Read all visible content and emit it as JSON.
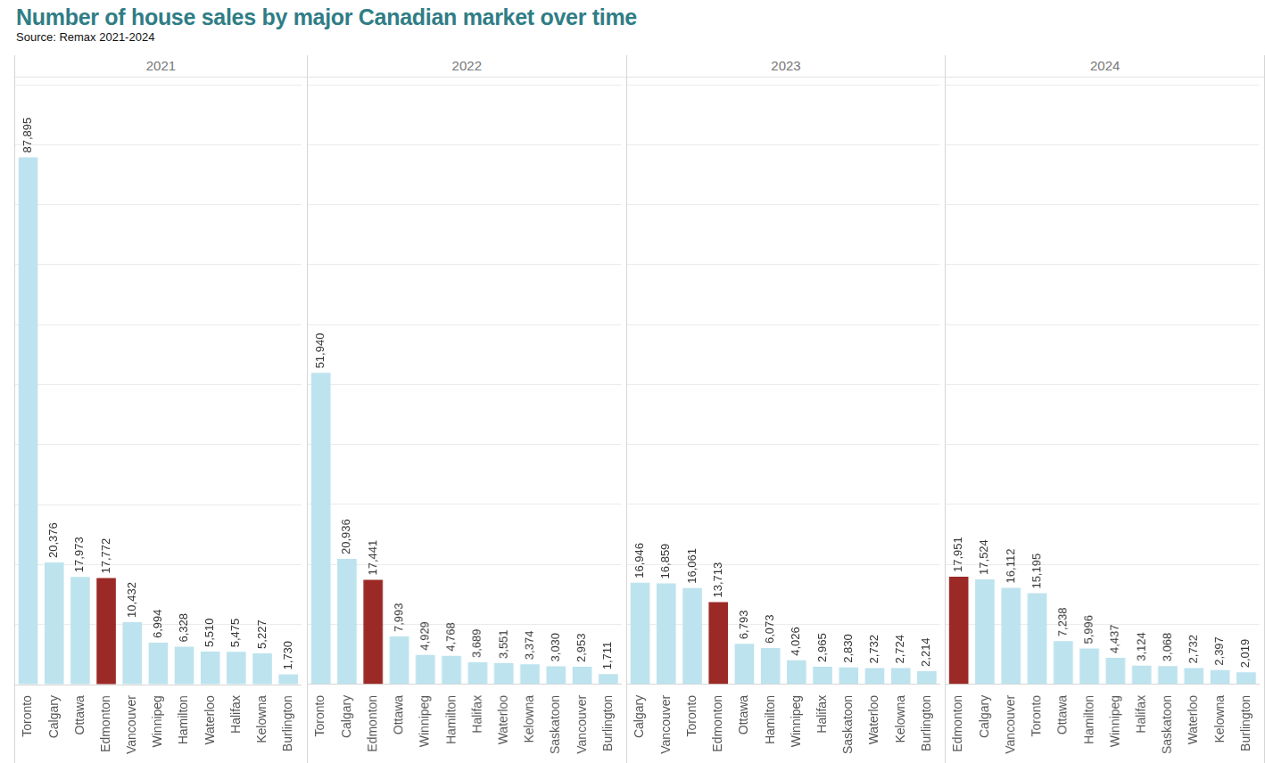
{
  "title": "Number of house sales by major Canadian market over time",
  "subtitle": "Source: Remax 2021-2024",
  "chart_data": [
    {
      "type": "bar",
      "title": "2021",
      "categories": [
        "Toronto",
        "Calgary",
        "Ottawa",
        "Edmonton",
        "Vancouver",
        "Winnipeg",
        "Hamilton",
        "Waterloo",
        "Halifax",
        "Kelowna",
        "Burlington"
      ],
      "values": [
        87895,
        20376,
        17973,
        17772,
        10432,
        6994,
        6328,
        5510,
        5475,
        5227,
        1730
      ],
      "value_labels": [
        "87,895",
        "20,376",
        "17,973",
        "17,772",
        "10,432",
        "6,994",
        "6,328",
        "5,510",
        "5,475",
        "5,227",
        "1,730"
      ],
      "colors": [
        "#bde3ee",
        "#bde3ee",
        "#bde3ee",
        "#9b2a27",
        "#bde3ee",
        "#bde3ee",
        "#bde3ee",
        "#bde3ee",
        "#bde3ee",
        "#bde3ee",
        "#bde3ee"
      ],
      "ylim": [
        0,
        100000
      ],
      "yticks": [
        0,
        10000,
        20000,
        30000,
        40000,
        50000,
        60000,
        70000,
        80000,
        90000,
        100000
      ],
      "grid": true,
      "data_labels": true,
      "tick_labels": "x"
    },
    {
      "type": "bar",
      "title": "2022",
      "categories": [
        "Toronto",
        "Calgary",
        "Edmonton",
        "Ottawa",
        "Winnipeg",
        "Hamilton",
        "Halifax",
        "Waterloo",
        "Kelowna",
        "Saskatoon",
        "Vancouver",
        "Burlington"
      ],
      "values": [
        51940,
        20936,
        17441,
        7993,
        4929,
        4768,
        3689,
        3551,
        3374,
        3030,
        2953,
        1711
      ],
      "value_labels": [
        "51,940",
        "20,936",
        "17,441",
        "7,993",
        "4,929",
        "4,768",
        "3,689",
        "3,551",
        "3,374",
        "3,030",
        "2,953",
        "1,711"
      ],
      "colors": [
        "#bde3ee",
        "#bde3ee",
        "#9b2a27",
        "#bde3ee",
        "#bde3ee",
        "#bde3ee",
        "#bde3ee",
        "#bde3ee",
        "#bde3ee",
        "#bde3ee",
        "#bde3ee",
        "#bde3ee"
      ],
      "ylim": [
        0,
        100000
      ],
      "yticks": [
        0,
        10000,
        20000,
        30000,
        40000,
        50000,
        60000,
        70000,
        80000,
        90000,
        100000
      ],
      "grid": true,
      "data_labels": true,
      "tick_labels": "x"
    },
    {
      "type": "bar",
      "title": "2023",
      "categories": [
        "Calgary",
        "Vancouver",
        "Toronto",
        "Edmonton",
        "Ottawa",
        "Hamilton",
        "Winnipeg",
        "Halifax",
        "Saskatoon",
        "Waterloo",
        "Kelowna",
        "Burlington"
      ],
      "values": [
        16946,
        16859,
        16061,
        13713,
        6793,
        6073,
        4026,
        2965,
        2830,
        2732,
        2724,
        2214
      ],
      "value_labels": [
        "16,946",
        "16,859",
        "16,061",
        "13,713",
        "6,793",
        "6,073",
        "4,026",
        "2,965",
        "2,830",
        "2,732",
        "2,724",
        "2,214"
      ],
      "colors": [
        "#bde3ee",
        "#bde3ee",
        "#bde3ee",
        "#9b2a27",
        "#bde3ee",
        "#bde3ee",
        "#bde3ee",
        "#bde3ee",
        "#bde3ee",
        "#bde3ee",
        "#bde3ee",
        "#bde3ee"
      ],
      "ylim": [
        0,
        100000
      ],
      "yticks": [
        0,
        10000,
        20000,
        30000,
        40000,
        50000,
        60000,
        70000,
        80000,
        90000,
        100000
      ],
      "grid": true,
      "data_labels": true,
      "tick_labels": "x"
    },
    {
      "type": "bar",
      "title": "2024",
      "categories": [
        "Edmonton",
        "Calgary",
        "Vancouver",
        "Toronto",
        "Ottawa",
        "Hamilton",
        "Winnipeg",
        "Halifax",
        "Saskatoon",
        "Waterloo",
        "Kelowna",
        "Burlington"
      ],
      "values": [
        17951,
        17524,
        16112,
        15195,
        7238,
        5996,
        4437,
        3124,
        3068,
        2732,
        2397,
        2019
      ],
      "value_labels": [
        "17,951",
        "17,524",
        "16,112",
        "15,195",
        "7,238",
        "5,996",
        "4,437",
        "3,124",
        "3,068",
        "2,732",
        "2,397",
        "2,019"
      ],
      "colors": [
        "#9b2a27",
        "#bde3ee",
        "#bde3ee",
        "#bde3ee",
        "#bde3ee",
        "#bde3ee",
        "#bde3ee",
        "#bde3ee",
        "#bde3ee",
        "#bde3ee",
        "#bde3ee",
        "#bde3ee"
      ],
      "ylim": [
        0,
        100000
      ],
      "yticks": [
        0,
        10000,
        20000,
        30000,
        40000,
        50000,
        60000,
        70000,
        80000,
        90000,
        100000
      ],
      "grid": true,
      "data_labels": true,
      "tick_labels": "x"
    }
  ]
}
